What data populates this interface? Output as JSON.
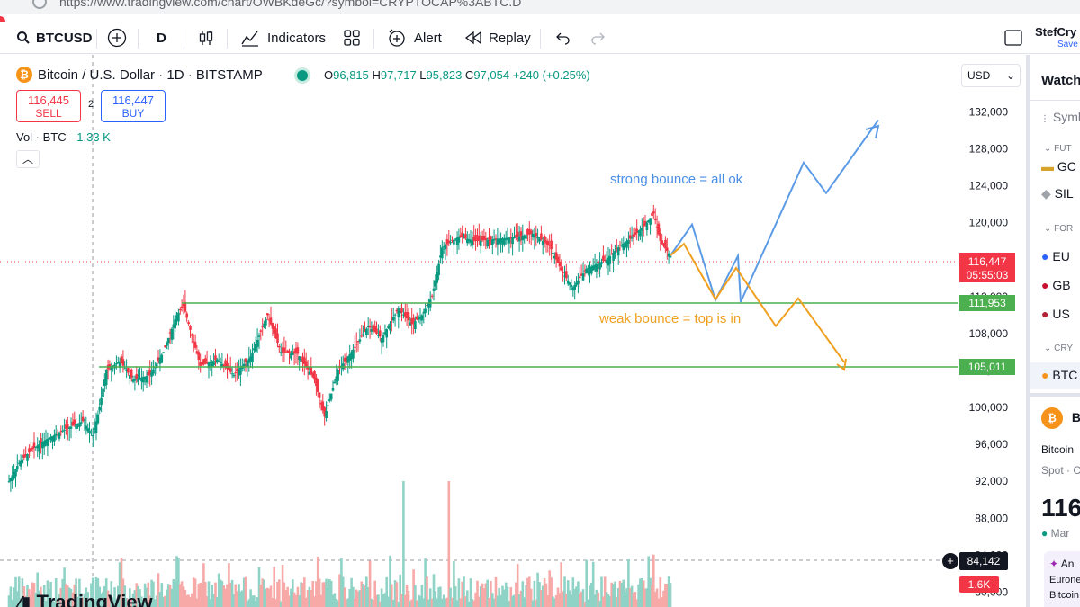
{
  "browser": {
    "url": "https://www.tradingview.com/chart/OWBKdeGc/?symbol=CRYPTOCAP%3ABTC.D"
  },
  "toolbar": {
    "symbol": "BTCUSD",
    "interval": "D",
    "indicators": "Indicators",
    "alert": "Alert",
    "replay": "Replay",
    "user": "StefCry",
    "save": "Save"
  },
  "legend": {
    "title": "Bitcoin / U.S. Dollar · 1D · BITSTAMP",
    "o_label": "O",
    "o": "96,815",
    "h_label": "H",
    "h": "97,717",
    "l_label": "L",
    "l": "95,823",
    "c_label": "C",
    "c": "97,054",
    "change": "+240 (+0.25%)",
    "sell_price": "116,445",
    "sell_label": "SELL",
    "buy_price": "116,447",
    "buy_label": "BUY",
    "spread": "2",
    "vol_label": "Vol · BTC",
    "vol_value": "1.33 K"
  },
  "currency": "USD",
  "chart_data": {
    "type": "candlestick",
    "y_axis_ticks": [
      "132,000",
      "128,000",
      "124,000",
      "120,000",
      "116,000",
      "112,000",
      "108,000",
      "104,000",
      "100,000",
      "96,000",
      "92,000",
      "88,000",
      "84,000",
      "80,000"
    ],
    "ylim": [
      80000,
      132000
    ],
    "support_levels": [
      111953,
      105011
    ],
    "last_price": "116,447",
    "countdown": "05:55:03",
    "crosshair_price": "84,142",
    "volume_label": "1.6K",
    "annotations": [
      {
        "text": "strong bounce = all ok",
        "color": "#4a8ee6"
      },
      {
        "text": "weak bounce = top is in",
        "color": "#f0a020"
      }
    ],
    "scenario_bullish": [
      116447,
      119800,
      111600,
      116400,
      111400,
      126500,
      123200,
      131100
    ],
    "scenario_bearish": [
      116447,
      117700,
      111700,
      115100,
      108800,
      111800,
      104900
    ]
  },
  "brand": "TradingView",
  "watchlist": {
    "title": "Watch",
    "symbol_col": "Symbo",
    "sections": [
      "FUT",
      "FOR",
      "CRY"
    ],
    "items": [
      "GC",
      "SIL",
      "EU",
      "GB",
      "US",
      "BTC"
    ],
    "detail_symbol": "B",
    "detail_name": "Bitcoin",
    "detail_type": "Spot · C",
    "detail_price": "116",
    "detail_market": "Mar",
    "news_1": "An",
    "news_2": "Eurone",
    "news_3": "Bitcoin"
  },
  "colors": {
    "up": "#089981",
    "down": "#f23645",
    "support": "#4caf50",
    "bull_path": "#5b9be6",
    "bear_path": "#f0a020"
  }
}
